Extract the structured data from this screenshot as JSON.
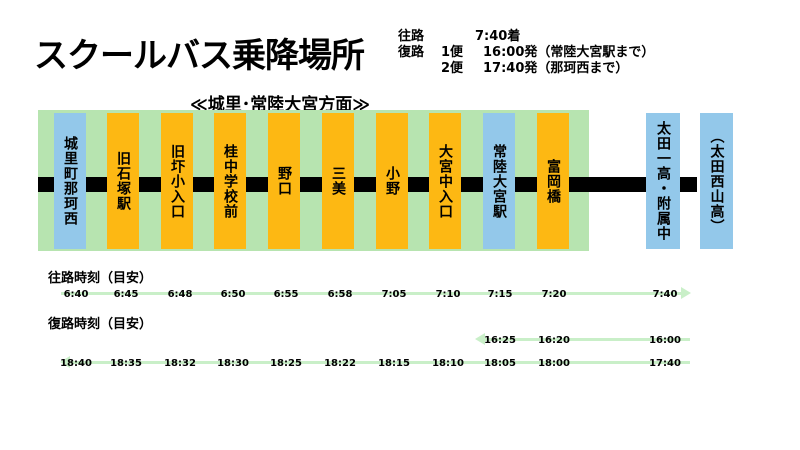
{
  "title": "スクールバス乗降場所",
  "schedule": {
    "outbound_label": "往路",
    "outbound_time": "7:40着",
    "return_label": "復路",
    "return_1_name": "1便",
    "return_1_time": "16:00発（常陸大宮駅まで）",
    "return_2_name": "2便",
    "return_2_time": "17:40発（那珂西まで）"
  },
  "section_title": "≪城里･常陸大宮方面≫",
  "stops": [
    {
      "label": "城里町那珂西",
      "color": "blue"
    },
    {
      "label": "旧石塚駅",
      "color": "orange"
    },
    {
      "label": "旧圷小入口",
      "color": "orange"
    },
    {
      "label": "桂中学校前",
      "color": "orange"
    },
    {
      "label": "野口",
      "color": "orange"
    },
    {
      "label": "三美",
      "color": "orange"
    },
    {
      "label": "小野",
      "color": "orange"
    },
    {
      "label": "大宮中入口",
      "color": "orange"
    },
    {
      "label": "常陸大宮駅",
      "color": "blue"
    },
    {
      "label": "富岡橋",
      "color": "orange"
    },
    {
      "label": "太田一高・附属中",
      "color": "blue"
    },
    {
      "label": "（太田西山高）",
      "color": "blue"
    }
  ],
  "outbound_heading": "往路時刻（目安）",
  "return_heading": "復路時刻（目安）",
  "outbound_times": [
    "6:40",
    "6:45",
    "6:48",
    "6:50",
    "6:55",
    "6:58",
    "7:05",
    "7:10",
    "7:15",
    "7:20",
    "7:40"
  ],
  "return_1_times": [
    "16:25",
    "16:20",
    "16:00"
  ],
  "return_2_times": [
    "18:40",
    "18:35",
    "18:32",
    "18:30",
    "18:25",
    "18:22",
    "18:15",
    "18:10",
    "18:05",
    "18:00",
    "17:40"
  ],
  "colors": {
    "band": "#b7e4b0",
    "blue_stop": "#93c8ea",
    "orange_stop": "#fdb813",
    "arrow": "#c9efc8"
  }
}
